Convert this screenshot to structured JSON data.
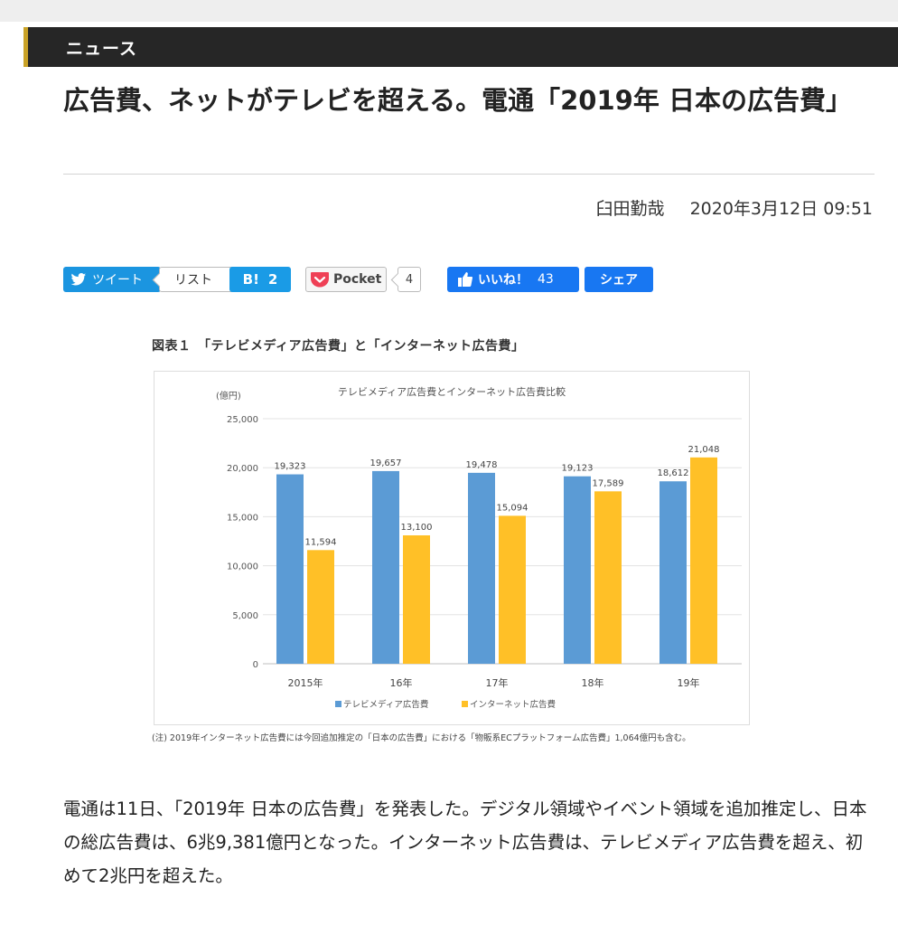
{
  "section": {
    "label": "ニュース"
  },
  "headline": "広告費、ネットがテレビを超える。電通「2019年 日本の広告費」",
  "byline": {
    "author": "臼田勤哉",
    "datetime": "2020年3月12日 09:51"
  },
  "share": {
    "tweet_label": "ツイート",
    "list_label": "リスト",
    "hatena_label": "B!",
    "hatena_count": "2",
    "pocket_label": "Pocket",
    "pocket_count": "4",
    "like_label": "いいね！",
    "like_count": "43",
    "share_label": "シェア",
    "colors": {
      "twitter": "#1b95e0",
      "hatena": "#1a9be6",
      "facebook": "#1877f2",
      "pocket": "#ef4056"
    }
  },
  "figure": {
    "caption": "図表１　「テレビメディア広告費」と「インターネット広告費」",
    "note": "(注) 2019年インターネット広告費には今回追加推定の「日本の広告費」における「物販系ECプラットフォーム広告費」1,064億円も含む。"
  },
  "chart_data": {
    "type": "bar",
    "title": "テレビメディア広告費とインターネット広告費比較",
    "ylabel": "(億円)",
    "ylim": [
      0,
      25000
    ],
    "yticks": [
      0,
      5000,
      10000,
      15000,
      20000,
      25000
    ],
    "ytick_labels": [
      "0",
      "5,000",
      "10,000",
      "15,000",
      "20,000",
      "25,000"
    ],
    "categories": [
      "2015年",
      "16年",
      "17年",
      "18年",
      "19年"
    ],
    "series": [
      {
        "name": "テレビメディア広告費",
        "color": "#5b9bd5",
        "values": [
          19323,
          19657,
          19478,
          19123,
          18612
        ],
        "labels": [
          "19,323",
          "19,657",
          "19,478",
          "19,123",
          "18,612"
        ]
      },
      {
        "name": "インターネット広告費",
        "color": "#ffc027",
        "values": [
          11594,
          13100,
          15094,
          17589,
          21048
        ],
        "labels": [
          "11,594",
          "13,100",
          "15,094",
          "17,589",
          "21,048"
        ]
      }
    ],
    "grid": true,
    "legend": "bottom"
  },
  "article": {
    "paragraph": "電通は11日、「2019年 日本の広告費」を発表した。デジタル領域やイベント領域を追加推定し、日本の総広告費は、6兆9,381億円となった。インターネット広告費は、テレビメディア広告費を超え、初めて2兆円を超えた。"
  }
}
